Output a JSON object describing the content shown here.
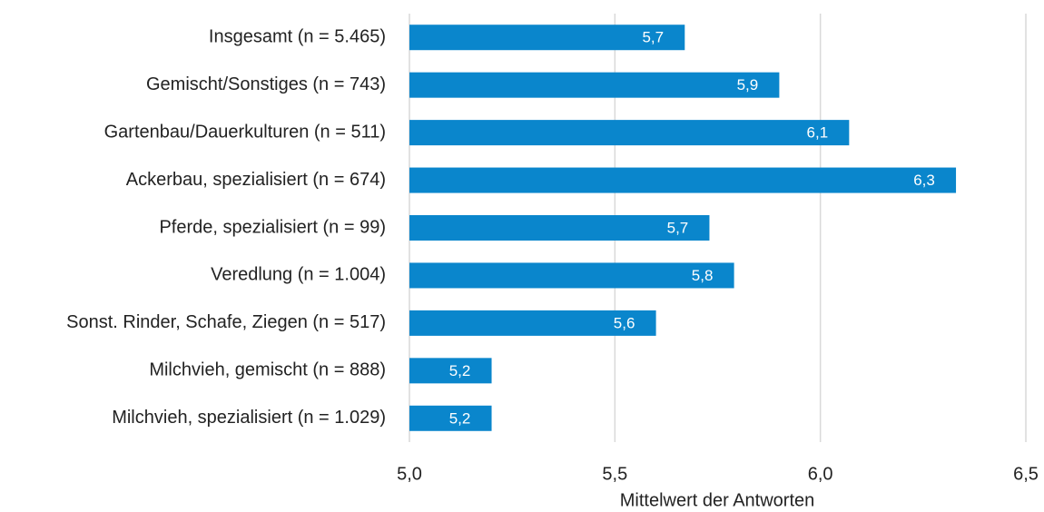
{
  "chart_data": {
    "type": "hbar",
    "x_label": "Mittelwert der Antworten",
    "categories": [
      "Insgesamt (n = 5.465)",
      "Gemischt/Sonstiges (n = 743)",
      "Gartenbau/Dauerkulturen (n = 511)",
      "Ackerbau, spezialisiert (n = 674)",
      "Pferde, spezialisiert (n = 99)",
      "Veredlung (n = 1.004)",
      "Sonst. Rinder, Schafe, Ziegen (n = 517)",
      "Milchvieh, gemischt (n = 888)",
      "Milchvieh, spezialisiert (n = 1.029)"
    ],
    "values": [
      5.67,
      5.9,
      6.07,
      6.33,
      5.73,
      5.79,
      5.6,
      5.2,
      5.2
    ],
    "value_labels": [
      "5,7",
      "5,9",
      "6,1",
      "6,3",
      "5,7",
      "5,8",
      "5,6",
      "5,2",
      "5,2"
    ],
    "color": "#0a86cc",
    "xlim": [
      5.0,
      6.5
    ],
    "xticks": [
      {
        "value": 5.0,
        "label": "5,0"
      },
      {
        "value": 5.5,
        "label": "5,5"
      },
      {
        "value": 6.0,
        "label": "6,0"
      },
      {
        "value": 6.5,
        "label": "6,5"
      }
    ],
    "grid": true
  }
}
